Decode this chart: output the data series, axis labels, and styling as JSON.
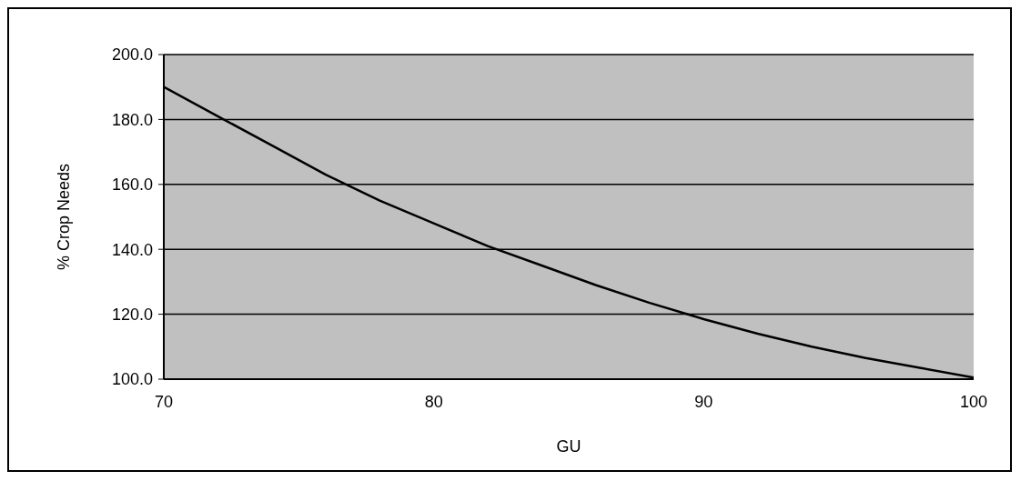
{
  "chart_data": {
    "type": "line",
    "xlabel": "GU",
    "ylabel": "% Crop Needs",
    "x": [
      70,
      72,
      74,
      76,
      78,
      80,
      82,
      84,
      86,
      88,
      90,
      92,
      94,
      96,
      98,
      100
    ],
    "series": [
      {
        "color": "#000000",
        "values": [
          190,
          181,
          172,
          163,
          155,
          148,
          141,
          135,
          129,
          123.5,
          118.5,
          114,
          110,
          106.5,
          103.5,
          100.5
        ]
      }
    ],
    "xlim": [
      70,
      100
    ],
    "xticks": [
      70,
      80,
      90,
      100
    ],
    "ylim": [
      100,
      200
    ],
    "yticks": [
      {
        "value": 100,
        "label": "100.0"
      },
      {
        "value": 120,
        "label": "120.0"
      },
      {
        "value": 140,
        "label": "140.0"
      },
      {
        "value": 160,
        "label": "160.0"
      },
      {
        "value": 180,
        "label": "180.0"
      },
      {
        "value": 200,
        "label": "200.0"
      }
    ],
    "grid": "y",
    "legend": false,
    "marker": "none",
    "line_style": "solid"
  }
}
